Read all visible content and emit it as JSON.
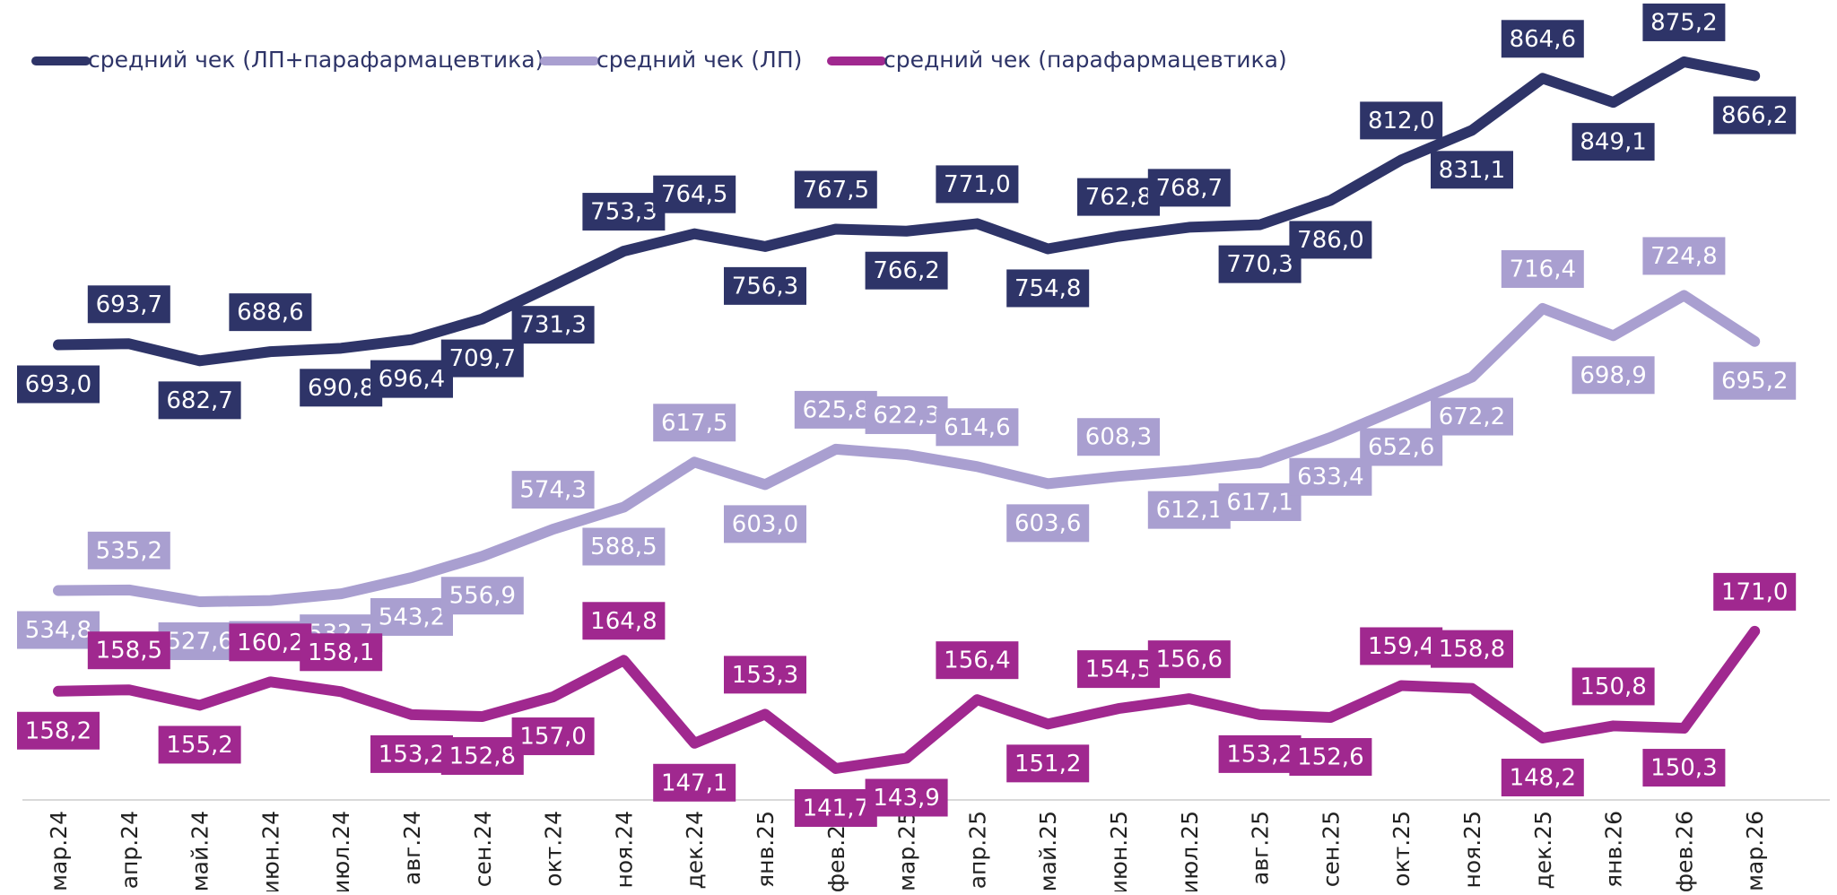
{
  "chart_data": {
    "type": "line",
    "categories": [
      "мар.24",
      "апр.24",
      "май.24",
      "июн.24",
      "июл.24",
      "авг.24",
      "сен.24",
      "окт.24",
      "ноя.24",
      "дек.24",
      "янв.25",
      "фев.25",
      "мар.25",
      "апр.25",
      "май.25",
      "июн.25",
      "июл.25",
      "авг.25",
      "сен.25",
      "окт.25",
      "ноя.25",
      "дек.25",
      "янв.26",
      "фев.26",
      "мар.26"
    ],
    "ylim": [
      400,
      915
    ],
    "y2lim": [
      135,
      305.7
    ],
    "legend": "top-left",
    "series": [
      {
        "name": "средний чек (ЛП+парафармацевтика)",
        "color": "#2e3468",
        "values": [
          693.0,
          693.7,
          682.7,
          688.6,
          690.8,
          696.4,
          709.7,
          731.3,
          753.3,
          764.5,
          756.3,
          767.5,
          766.2,
          771.0,
          754.8,
          762.8,
          768.7,
          770.3,
          786.0,
          812.0,
          831.1,
          864.6,
          849.1,
          875.2,
          866.2
        ],
        "value_labels": [
          "693,0",
          "693,7",
          "682,7",
          "688,6",
          "690,8",
          "696,4",
          "709,7",
          "731,3",
          "753,3",
          "764,5",
          "756,3",
          "767,5",
          "766,2",
          "771,0",
          "754,8",
          "762,8",
          "768,7",
          "770,3",
          "786,0",
          "812,0",
          "831,1",
          "864,6",
          "849,1",
          "875,2",
          "866,2"
        ]
      },
      {
        "name": "средний чек (ЛП)",
        "color": "#a99fd0",
        "values": [
          534.8,
          535.2,
          527.6,
          528.4,
          532.7,
          543.2,
          556.9,
          574.3,
          588.5,
          617.5,
          603.0,
          625.8,
          622.3,
          614.6,
          603.6,
          608.3,
          612.1,
          617.1,
          633.4,
          652.6,
          672.2,
          716.4,
          698.9,
          724.8,
          695.2
        ],
        "value_labels": [
          "534,8",
          "535,2",
          "527,6",
          "528,4",
          "532,7",
          "543,2",
          "556,9",
          "574,3",
          "588,5",
          "617,5",
          "603,0",
          "625,8",
          "622,3",
          "614,6",
          "603,6",
          "608,3",
          "612,1",
          "617,1",
          "633,4",
          "652,6",
          "672,2",
          "716,4",
          "698,9",
          "724,8",
          "695,2"
        ]
      },
      {
        "name": "средний чек (парафармацевтика)",
        "color": "#a0288f",
        "axis": "y2",
        "values": [
          158.2,
          158.5,
          155.2,
          160.2,
          158.1,
          153.2,
          152.8,
          157.0,
          164.8,
          147.1,
          153.3,
          141.7,
          143.9,
          156.4,
          151.2,
          154.5,
          156.6,
          153.2,
          152.6,
          159.4,
          158.8,
          148.2,
          150.8,
          150.3,
          171.0
        ],
        "value_labels": [
          "158,2",
          "158,5",
          "155,2",
          "160,2",
          "158,1",
          "153,2",
          "152,8",
          "157,0",
          "164,8",
          "147,1",
          "153,3",
          "141,7",
          "143,9",
          "156,4",
          "151,2",
          "154,5",
          "156,6",
          "153,2",
          "152,6",
          "159,4",
          "158,8",
          "148,2",
          "150,8",
          "150,3",
          "171,0"
        ]
      }
    ]
  }
}
